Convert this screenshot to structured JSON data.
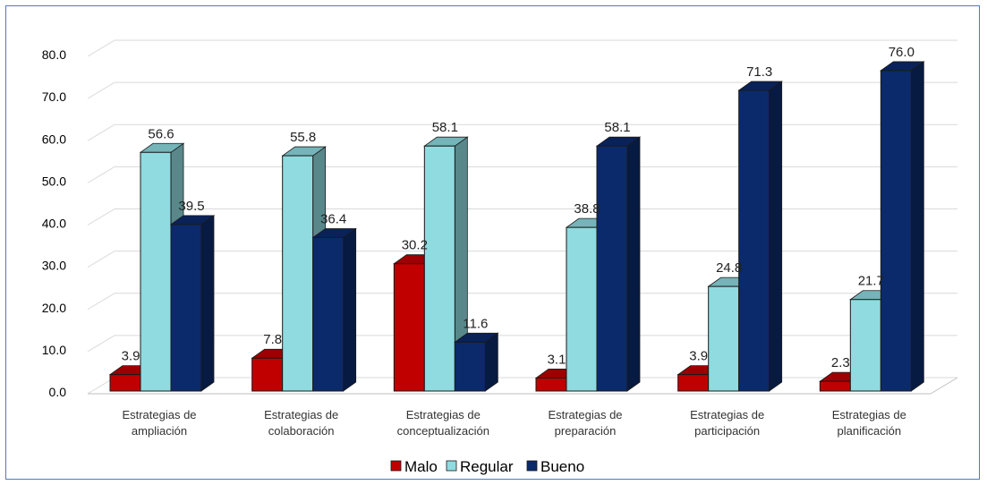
{
  "chart_data": {
    "type": "bar",
    "categories": [
      [
        "Estrategias de",
        "ampliación"
      ],
      [
        "Estrategias de",
        "colaboración"
      ],
      [
        "Estrategias de",
        "conceptualización"
      ],
      [
        "Estrategias de",
        "preparación"
      ],
      [
        "Estrategias de",
        "participación"
      ],
      [
        "Estrategias de",
        "planificación"
      ]
    ],
    "series": [
      {
        "name": "Malo",
        "values": [
          3.9,
          7.8,
          30.2,
          3.1,
          3.9,
          2.3
        ],
        "color": "#c00000"
      },
      {
        "name": "Regular",
        "values": [
          56.6,
          55.8,
          58.1,
          38.8,
          24.8,
          21.7
        ],
        "color": "#8fdbe0"
      },
      {
        "name": "Bueno",
        "values": [
          39.5,
          36.4,
          11.6,
          58.1,
          71.3,
          76.0
        ],
        "color": "#0b2a6b"
      }
    ],
    "yticks": [
      "0.0",
      "10.0",
      "20.0",
      "30.0",
      "40.0",
      "50.0",
      "60.0",
      "70.0",
      "80.0"
    ],
    "ylim": [
      0,
      80
    ],
    "grid": true,
    "legend_position": "bottom",
    "title": "",
    "xlabel": "",
    "ylabel": ""
  }
}
